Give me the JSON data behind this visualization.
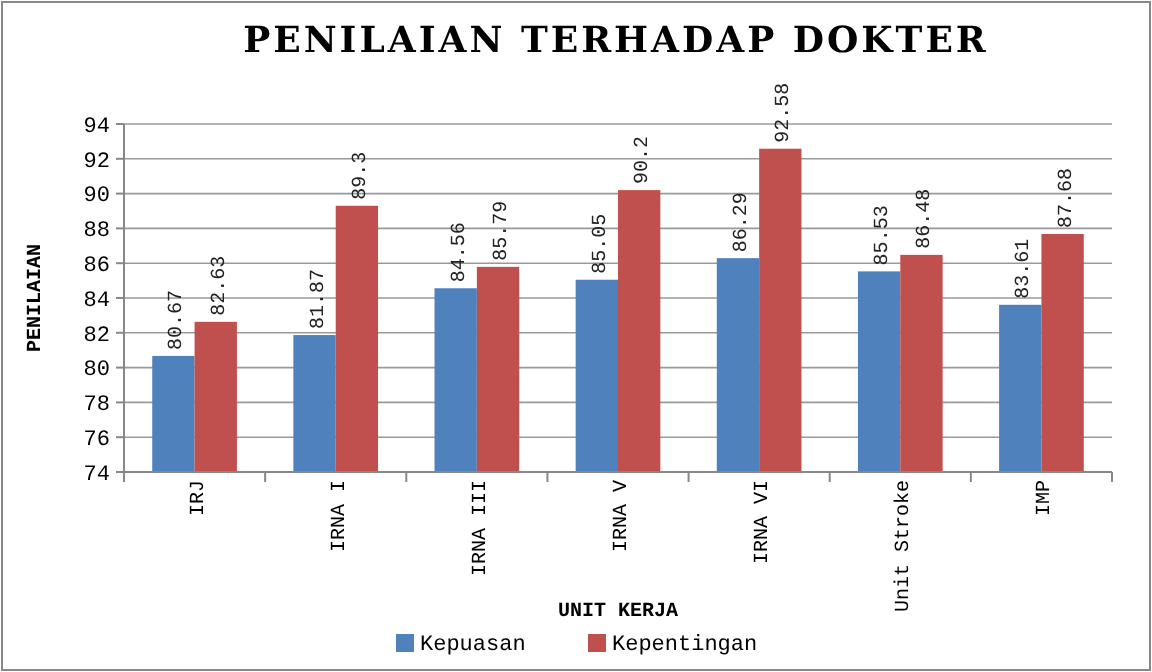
{
  "chart_data": {
    "type": "bar",
    "title": "PENILAIAN TERHADAP DOKTER",
    "xlabel": "UNIT KERJA",
    "ylabel": "PENILAIAN",
    "categories": [
      "IRJ",
      "IRNA I",
      "IRNA III",
      "IRNA V",
      "IRNA VI",
      "Unit Stroke",
      "IMP"
    ],
    "series": [
      {
        "name": "Kepuasan",
        "color": "#4f81bd",
        "values": [
          80.67,
          81.87,
          84.56,
          85.05,
          86.29,
          85.53,
          83.61
        ]
      },
      {
        "name": "Kepentingan",
        "color": "#c0504d",
        "values": [
          82.63,
          89.3,
          85.79,
          90.2,
          92.58,
          86.48,
          87.68
        ]
      }
    ],
    "ylim": [
      74,
      94
    ],
    "yticks": [
      74,
      76,
      78,
      80,
      82,
      84,
      86,
      88,
      90,
      92,
      94
    ],
    "grid": "y",
    "data_labels": true,
    "legend": "bottom"
  }
}
